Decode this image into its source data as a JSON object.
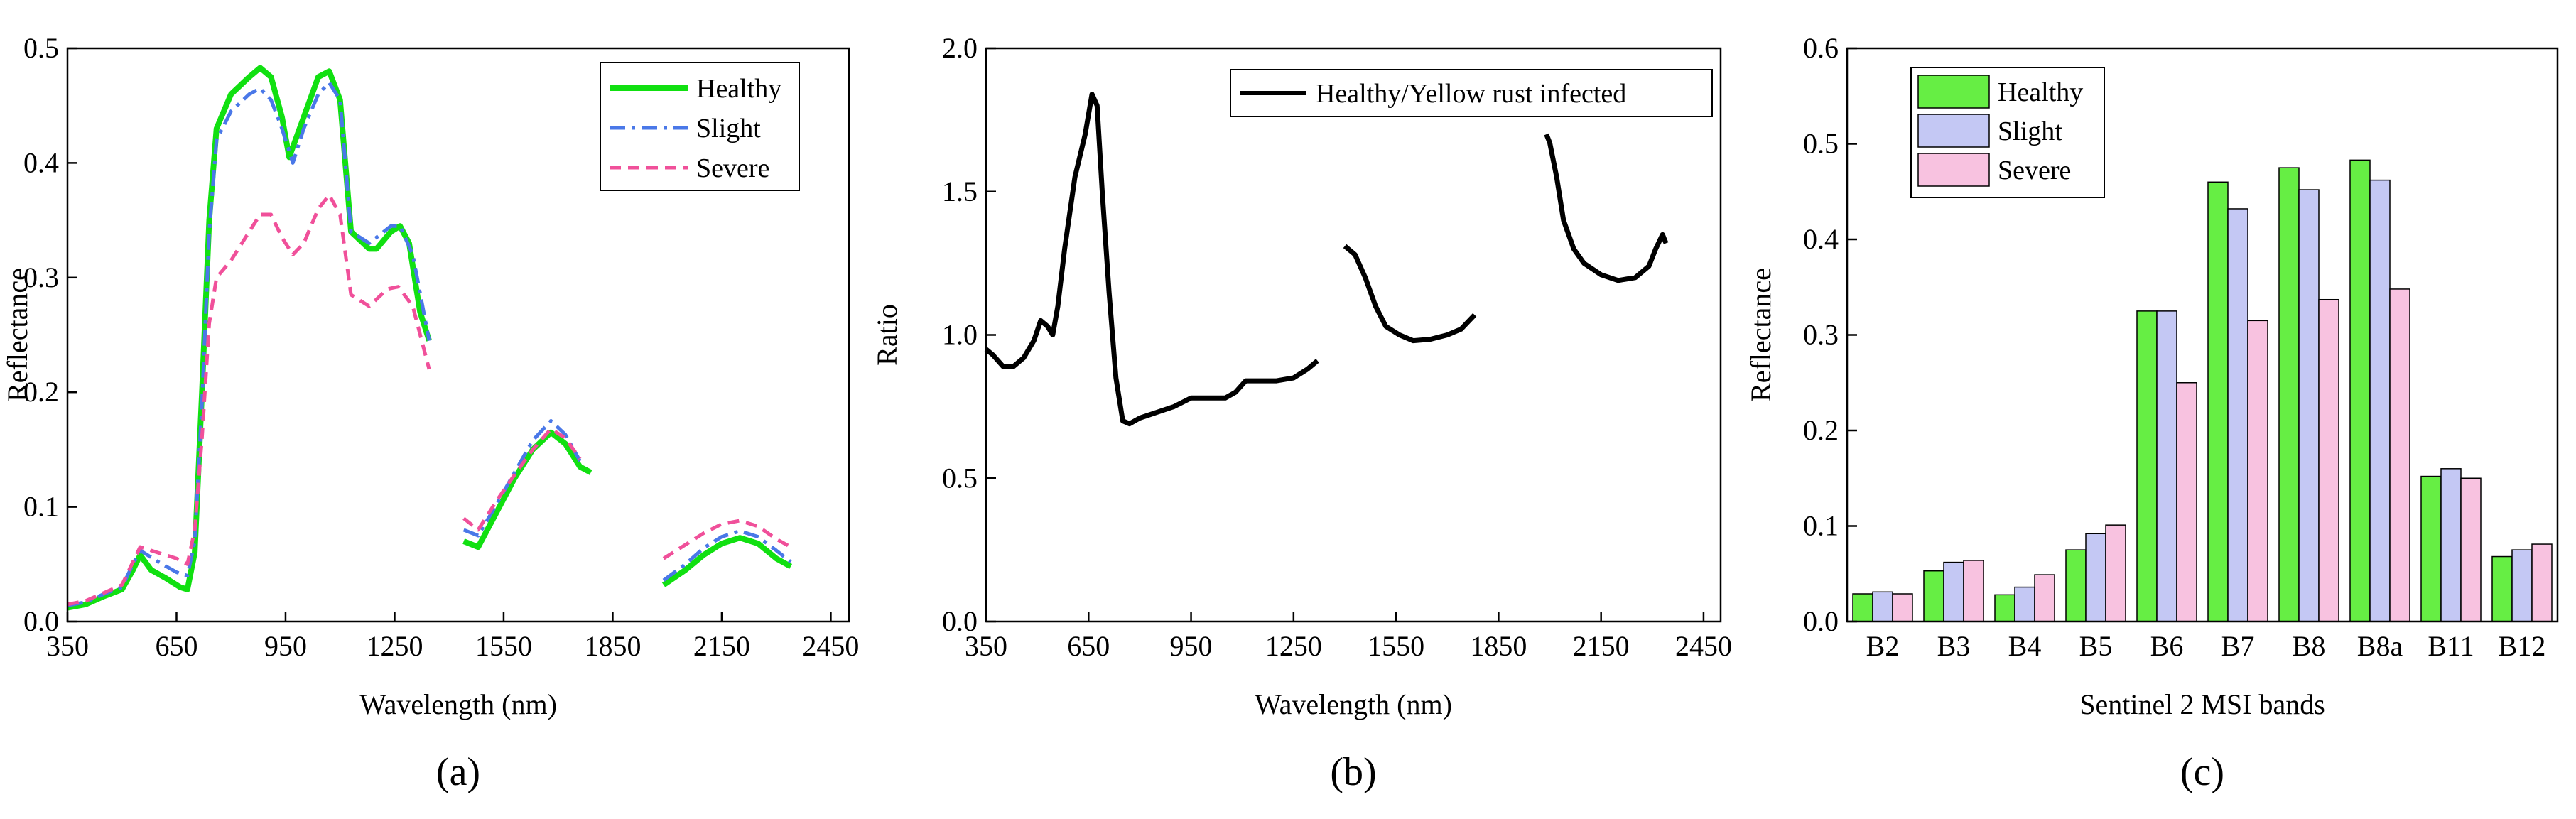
{
  "colors": {
    "healthy": "#11e011",
    "slight": "#4a78e8",
    "severe": "#f0509a",
    "ratio": "#000000",
    "bar_healthy": "#66ee44",
    "bar_slight": "#c4c8f4",
    "bar_severe": "#f8c2e0"
  },
  "chart_data": [
    {
      "type": "line",
      "panel_label": "(a)",
      "title": "",
      "xlabel": "Wavelength (nm)",
      "ylabel": "Reflectance",
      "xlim": [
        350,
        2500
      ],
      "ylim": [
        0.0,
        0.5
      ],
      "xticks": [
        "350",
        "650",
        "950",
        "1250",
        "1550",
        "1850",
        "2150",
        "2450"
      ],
      "yticks": [
        "0.0",
        "0.1",
        "0.2",
        "0.3",
        "0.4",
        "0.5"
      ],
      "legend_position": "top-right",
      "series": [
        {
          "name": "Healthy",
          "style": "solid",
          "segments": [
            [
              [
                350,
                0.012
              ],
              [
                400,
                0.015
              ],
              [
                450,
                0.022
              ],
              [
                500,
                0.028
              ],
              [
                530,
                0.045
              ],
              [
                550,
                0.058
              ],
              [
                580,
                0.045
              ],
              [
                620,
                0.038
              ],
              [
                660,
                0.03
              ],
              [
                680,
                0.028
              ],
              [
                700,
                0.06
              ],
              [
                720,
                0.2
              ],
              [
                740,
                0.35
              ],
              [
                760,
                0.43
              ],
              [
                800,
                0.46
              ],
              [
                850,
                0.475
              ],
              [
                880,
                0.483
              ],
              [
                910,
                0.475
              ],
              [
                940,
                0.44
              ],
              [
                960,
                0.405
              ],
              [
                1000,
                0.44
              ],
              [
                1040,
                0.475
              ],
              [
                1070,
                0.48
              ],
              [
                1100,
                0.455
              ],
              [
                1130,
                0.34
              ],
              [
                1180,
                0.325
              ],
              [
                1200,
                0.325
              ],
              [
                1240,
                0.34
              ],
              [
                1265,
                0.345
              ],
              [
                1290,
                0.33
              ],
              [
                1320,
                0.27
              ],
              [
                1345,
                0.245
              ]
            ],
            [
              [
                1440,
                0.07
              ],
              [
                1480,
                0.065
              ],
              [
                1530,
                0.095
              ],
              [
                1580,
                0.125
              ],
              [
                1630,
                0.15
              ],
              [
                1680,
                0.165
              ],
              [
                1720,
                0.155
              ],
              [
                1760,
                0.135
              ],
              [
                1790,
                0.13
              ]
            ],
            [
              [
                1990,
                0.032
              ],
              [
                2050,
                0.045
              ],
              [
                2100,
                0.058
              ],
              [
                2150,
                0.068
              ],
              [
                2200,
                0.073
              ],
              [
                2250,
                0.068
              ],
              [
                2300,
                0.055
              ],
              [
                2340,
                0.048
              ]
            ]
          ]
        },
        {
          "name": "Slight",
          "style": "dash-dot",
          "segments": [
            [
              [
                350,
                0.014
              ],
              [
                400,
                0.017
              ],
              [
                450,
                0.024
              ],
              [
                500,
                0.03
              ],
              [
                530,
                0.05
              ],
              [
                550,
                0.062
              ],
              [
                600,
                0.052
              ],
              [
                650,
                0.043
              ],
              [
                680,
                0.04
              ],
              [
                700,
                0.07
              ],
              [
                720,
                0.19
              ],
              [
                740,
                0.34
              ],
              [
                760,
                0.42
              ],
              [
                800,
                0.445
              ],
              [
                850,
                0.46
              ],
              [
                880,
                0.465
              ],
              [
                910,
                0.455
              ],
              [
                940,
                0.43
              ],
              [
                970,
                0.4
              ],
              [
                1000,
                0.43
              ],
              [
                1040,
                0.46
              ],
              [
                1070,
                0.47
              ],
              [
                1100,
                0.455
              ],
              [
                1130,
                0.34
              ],
              [
                1180,
                0.33
              ],
              [
                1240,
                0.345
              ],
              [
                1265,
                0.345
              ],
              [
                1300,
                0.32
              ],
              [
                1345,
                0.245
              ]
            ],
            [
              [
                1440,
                0.08
              ],
              [
                1480,
                0.075
              ],
              [
                1530,
                0.102
              ],
              [
                1580,
                0.13
              ],
              [
                1630,
                0.158
              ],
              [
                1680,
                0.175
              ],
              [
                1720,
                0.163
              ],
              [
                1760,
                0.14
              ]
            ],
            [
              [
                1990,
                0.036
              ],
              [
                2050,
                0.05
              ],
              [
                2100,
                0.064
              ],
              [
                2150,
                0.074
              ],
              [
                2200,
                0.079
              ],
              [
                2250,
                0.074
              ],
              [
                2300,
                0.062
              ],
              [
                2340,
                0.052
              ]
            ]
          ]
        },
        {
          "name": "Severe",
          "style": "dashed",
          "segments": [
            [
              [
                350,
                0.015
              ],
              [
                400,
                0.018
              ],
              [
                450,
                0.025
              ],
              [
                500,
                0.032
              ],
              [
                530,
                0.052
              ],
              [
                550,
                0.065
              ],
              [
                600,
                0.06
              ],
              [
                650,
                0.055
              ],
              [
                680,
                0.05
              ],
              [
                700,
                0.08
              ],
              [
                720,
                0.16
              ],
              [
                740,
                0.26
              ],
              [
                760,
                0.3
              ],
              [
                800,
                0.315
              ],
              [
                850,
                0.34
              ],
              [
                880,
                0.355
              ],
              [
                910,
                0.355
              ],
              [
                940,
                0.335
              ],
              [
                970,
                0.32
              ],
              [
                1000,
                0.33
              ],
              [
                1040,
                0.36
              ],
              [
                1070,
                0.372
              ],
              [
                1100,
                0.355
              ],
              [
                1130,
                0.285
              ],
              [
                1180,
                0.275
              ],
              [
                1230,
                0.29
              ],
              [
                1260,
                0.292
              ],
              [
                1300,
                0.275
              ],
              [
                1345,
                0.22
              ]
            ],
            [
              [
                1440,
                0.09
              ],
              [
                1480,
                0.08
              ],
              [
                1530,
                0.105
              ],
              [
                1580,
                0.128
              ],
              [
                1630,
                0.15
              ],
              [
                1680,
                0.168
              ],
              [
                1720,
                0.16
              ],
              [
                1760,
                0.142
              ]
            ],
            [
              [
                1990,
                0.055
              ],
              [
                2050,
                0.067
              ],
              [
                2100,
                0.077
              ],
              [
                2150,
                0.085
              ],
              [
                2200,
                0.088
              ],
              [
                2250,
                0.083
              ],
              [
                2300,
                0.072
              ],
              [
                2340,
                0.065
              ]
            ]
          ]
        }
      ]
    },
    {
      "type": "line",
      "panel_label": "(b)",
      "title": "",
      "xlabel": "Wavelength (nm)",
      "ylabel": "Ratio",
      "xlim": [
        350,
        2500
      ],
      "ylim": [
        0.0,
        2.0
      ],
      "xticks": [
        "350",
        "650",
        "950",
        "1250",
        "1550",
        "1850",
        "2150",
        "2450"
      ],
      "yticks": [
        "0.0",
        "0.5",
        "1.0",
        "1.5",
        "2.0"
      ],
      "legend_position": "top-right",
      "series": [
        {
          "name": "Healthy/Yellow rust infected",
          "style": "solid",
          "segments": [
            [
              [
                350,
                0.95
              ],
              [
                370,
                0.93
              ],
              [
                400,
                0.89
              ],
              [
                430,
                0.89
              ],
              [
                460,
                0.92
              ],
              [
                490,
                0.98
              ],
              [
                510,
                1.05
              ],
              [
                530,
                1.03
              ],
              [
                545,
                1.0
              ],
              [
                560,
                1.1
              ],
              [
                580,
                1.3
              ],
              [
                610,
                1.55
              ],
              [
                640,
                1.7
              ],
              [
                660,
                1.84
              ],
              [
                675,
                1.8
              ],
              [
                690,
                1.5
              ],
              [
                710,
                1.15
              ],
              [
                730,
                0.85
              ],
              [
                750,
                0.7
              ],
              [
                770,
                0.69
              ],
              [
                800,
                0.71
              ],
              [
                850,
                0.73
              ],
              [
                900,
                0.75
              ],
              [
                950,
                0.78
              ],
              [
                1000,
                0.78
              ],
              [
                1050,
                0.78
              ],
              [
                1080,
                0.8
              ],
              [
                1110,
                0.84
              ],
              [
                1150,
                0.84
              ],
              [
                1200,
                0.84
              ],
              [
                1250,
                0.85
              ],
              [
                1290,
                0.88
              ],
              [
                1320,
                0.91
              ]
            ],
            [
              [
                1400,
                1.31
              ],
              [
                1430,
                1.28
              ],
              [
                1460,
                1.2
              ],
              [
                1490,
                1.1
              ],
              [
                1520,
                1.03
              ],
              [
                1560,
                1.0
              ],
              [
                1600,
                0.98
              ],
              [
                1650,
                0.985
              ],
              [
                1700,
                1.0
              ],
              [
                1740,
                1.02
              ],
              [
                1780,
                1.07
              ]
            ],
            [
              [
                1990,
                1.7
              ],
              [
                2000,
                1.67
              ],
              [
                2020,
                1.55
              ],
              [
                2040,
                1.4
              ],
              [
                2070,
                1.3
              ],
              [
                2100,
                1.25
              ],
              [
                2150,
                1.21
              ],
              [
                2200,
                1.19
              ],
              [
                2250,
                1.2
              ],
              [
                2290,
                1.24
              ],
              [
                2310,
                1.3
              ],
              [
                2330,
                1.35
              ],
              [
                2340,
                1.32
              ]
            ]
          ]
        }
      ]
    },
    {
      "type": "bar",
      "panel_label": "(c)",
      "title": "",
      "xlabel": "Sentinel 2 MSI bands",
      "ylabel": "Reflectance",
      "ylim": [
        0.0,
        0.6
      ],
      "yticks": [
        "0.0",
        "0.1",
        "0.2",
        "0.3",
        "0.4",
        "0.5",
        "0.6"
      ],
      "legend_position": "top-left",
      "categories": [
        "B2",
        "B3",
        "B4",
        "B5",
        "B6",
        "B7",
        "B8",
        "B8a",
        "B11",
        "B12"
      ],
      "series": [
        {
          "name": "Healthy",
          "values": [
            0.029,
            0.053,
            0.028,
            0.075,
            0.325,
            0.46,
            0.475,
            0.483,
            0.152,
            0.068
          ]
        },
        {
          "name": "Slight",
          "values": [
            0.031,
            0.062,
            0.036,
            0.092,
            0.325,
            0.432,
            0.452,
            0.462,
            0.16,
            0.075
          ]
        },
        {
          "name": "Severe",
          "values": [
            0.029,
            0.064,
            0.049,
            0.101,
            0.25,
            0.315,
            0.337,
            0.348,
            0.15,
            0.081
          ]
        }
      ]
    }
  ]
}
